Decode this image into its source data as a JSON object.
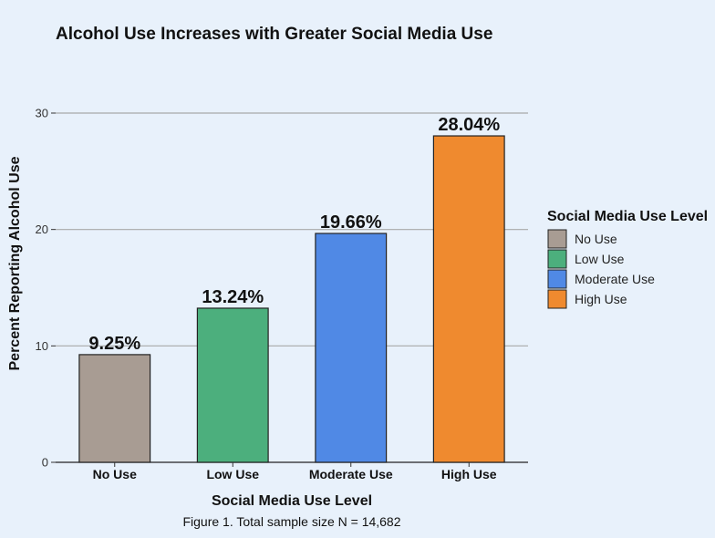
{
  "chart_data": {
    "type": "bar",
    "title": "Alcohol Use Increases with Greater Social Media Use",
    "xlabel": "Social Media Use Level",
    "ylabel": "Percent Reporting Alcohol Use",
    "caption": "Figure 1. Total sample size N = 14,682",
    "categories": [
      "No Use",
      "Low Use",
      "Moderate Use",
      "High Use"
    ],
    "values": [
      9.25,
      13.24,
      19.66,
      28.04
    ],
    "value_labels": [
      "9.25%",
      "13.24%",
      "19.66%",
      "28.04%"
    ],
    "colors": [
      "#a89c93",
      "#4caf7d",
      "#5089e5",
      "#ef8a2f"
    ],
    "ylim": [
      0,
      30
    ],
    "yticks": [
      0,
      10,
      20,
      30
    ],
    "grid": true,
    "legend": {
      "title": "Social Media Use Level",
      "placement": "right",
      "entries": [
        "No Use",
        "Low Use",
        "Moderate Use",
        "High Use"
      ]
    }
  }
}
